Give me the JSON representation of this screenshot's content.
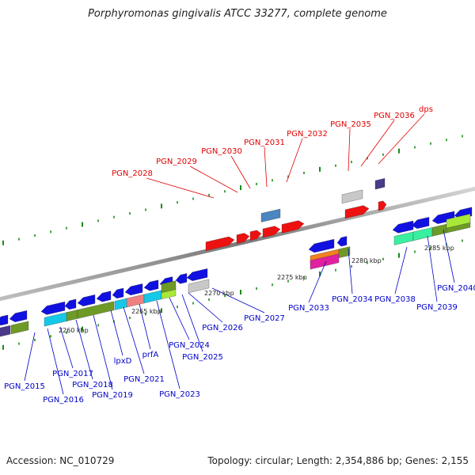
{
  "title": "Porphyromonas gingivalis ATCC 33277, complete genome",
  "footer": {
    "accession": "Accession: NC_010729",
    "topology": "Topology: circular; Length: 2,354,886 bp; Genes: 2,155"
  },
  "colors": {
    "backbone": "#8a8a8a",
    "forward_label": "#e00000",
    "reverse_label": "#0000c8",
    "tick": "#1a8a1a",
    "blue": "#1010e0",
    "red": "#ee1111",
    "olive": "#6e9a26",
    "cyan": "#16c8e8",
    "salmon": "#f08080",
    "lime": "#a8e838",
    "grey": "#c8c8c8",
    "steel": "#4a86c0",
    "indigo": "#4a3a8a",
    "mint": "#38f0a0",
    "orange": "#f08020",
    "magenta": "#e020a0"
  },
  "scale_labels": [
    "2260 kbp",
    "2265 kbp",
    "2270 kbp",
    "2275 kbp",
    "2280 kbp",
    "2285 kbp"
  ],
  "forward_genes": [
    "PGN_2028",
    "PGN_2029",
    "PGN_2030",
    "PGN_2031",
    "PGN_2032",
    "PGN_2035",
    "PGN_2036",
    "dps"
  ],
  "reverse_genes": [
    "PGN_2015",
    "PGN_2016",
    "PGN_2017",
    "PGN_2018",
    "PGN_2019",
    "lpxD",
    "PGN_2021",
    "prfA",
    "PGN_2023",
    "PGN_2024",
    "PGN_2025",
    "PGN_2026",
    "PGN_2027",
    "PGN_2033",
    "PGN_2034",
    "PGN_2038",
    "PGN_2039",
    "PGN_2040"
  ]
}
